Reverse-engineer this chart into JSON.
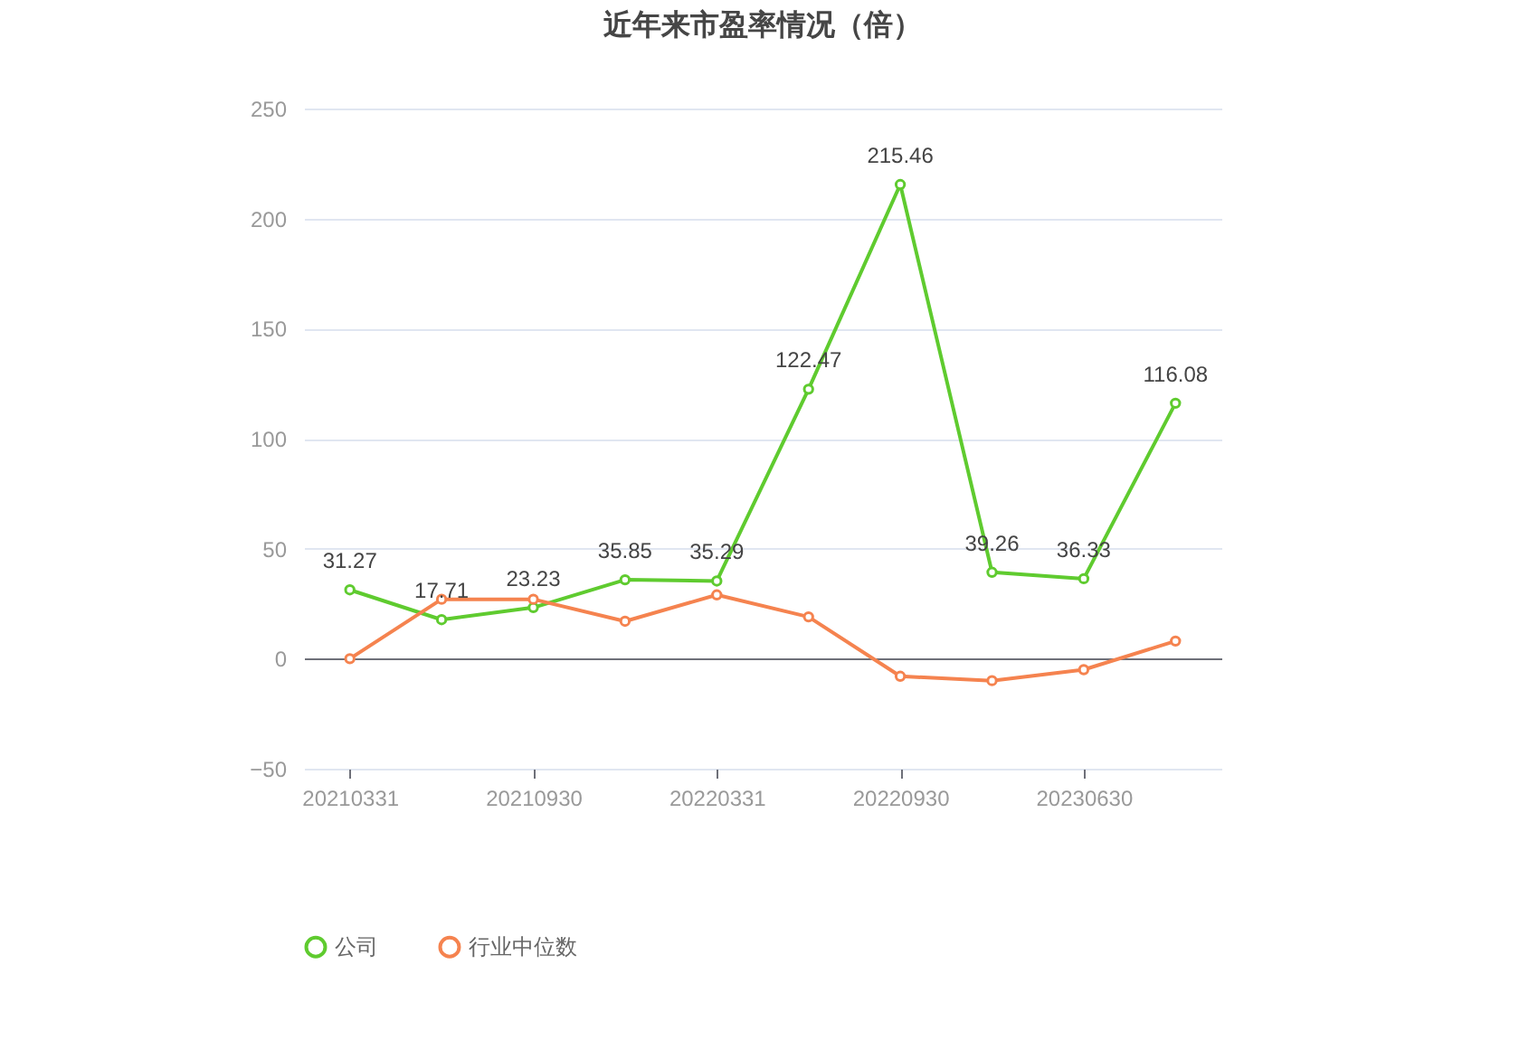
{
  "chart_data": {
    "type": "line",
    "title": "近年来市盈率情况（倍）",
    "categories": [
      "20210331",
      null,
      "20210930",
      null,
      "20220331",
      null,
      "20220930",
      null,
      "20230630",
      null
    ],
    "series": [
      {
        "name": "公司",
        "color": "#5fcb2f",
        "values": [
          31.27,
          17.71,
          23.23,
          35.85,
          35.29,
          122.47,
          215.46,
          39.26,
          36.33,
          116.08
        ],
        "value_labels": [
          "31.27",
          "17.71",
          "23.23",
          "35.85",
          "35.29",
          "122.47",
          "215.46",
          "39.26",
          "36.33",
          "116.08"
        ]
      },
      {
        "name": "行业中位数",
        "color": "#f5834f",
        "values": [
          0,
          27,
          27,
          17,
          29,
          19,
          -8,
          -10,
          -5,
          8
        ]
      }
    ],
    "ylim": [
      -50,
      250
    ],
    "yticks": [
      -50,
      0,
      50,
      100,
      150,
      200,
      250
    ],
    "grid": "y",
    "legend": "bottom",
    "marker": "circle",
    "line_style": "solid"
  }
}
